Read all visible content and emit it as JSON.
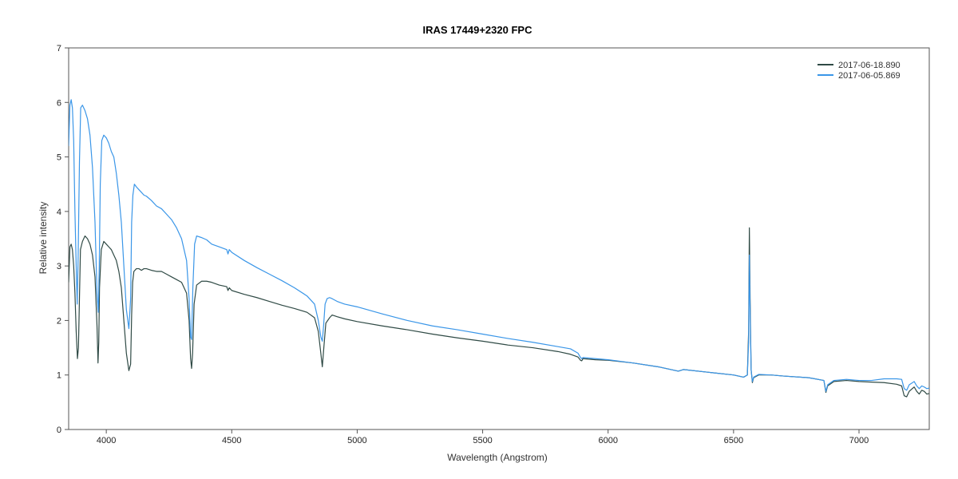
{
  "chart_data": {
    "type": "line",
    "title": "IRAS 17449+2320   FPC",
    "xlabel": "Wavelength (Angstrom)",
    "ylabel": "Relative intensity",
    "xlim": [
      3850,
      7280
    ],
    "ylim": [
      0,
      7
    ],
    "xticks": [
      4000,
      4500,
      5000,
      5500,
      6000,
      6500,
      7000
    ],
    "yticks": [
      0,
      1,
      2,
      3,
      4,
      5,
      6,
      7
    ],
    "grid": false,
    "legend_position": "top-right",
    "series": [
      {
        "name": "2017-06-18.890",
        "color": "#2f4a45",
        "x": [
          3850,
          3855,
          3860,
          3865,
          3870,
          3875,
          3880,
          3885,
          3889,
          3893,
          3897,
          3905,
          3915,
          3925,
          3935,
          3945,
          3955,
          3963,
          3967,
          3970,
          3973,
          3980,
          3990,
          4000,
          4010,
          4020,
          4030,
          4040,
          4050,
          4060,
          4070,
          4080,
          4090,
          4097,
          4101,
          4105,
          4110,
          4120,
          4130,
          4140,
          4150,
          4160,
          4180,
          4200,
          4220,
          4240,
          4260,
          4280,
          4300,
          4320,
          4330,
          4336,
          4340,
          4344,
          4350,
          4360,
          4380,
          4400,
          4420,
          4450,
          4480,
          4485,
          4490,
          4500,
          4550,
          4600,
          4650,
          4700,
          4750,
          4800,
          4830,
          4845,
          4855,
          4861,
          4867,
          4875,
          4890,
          4900,
          4920,
          4950,
          5000,
          5100,
          5200,
          5300,
          5400,
          5500,
          5600,
          5700,
          5800,
          5850,
          5880,
          5890,
          5895,
          5900,
          5950,
          6000,
          6100,
          6200,
          6280,
          6300,
          6400,
          6500,
          6540,
          6555,
          6560,
          6563,
          6566,
          6570,
          6575,
          6580,
          6600,
          6650,
          6700,
          6800,
          6860,
          6868,
          6875,
          6900,
          6950,
          7000,
          7050,
          7100,
          7150,
          7170,
          7180,
          7190,
          7200,
          7220,
          7230,
          7240,
          7250,
          7260,
          7270,
          7280
        ],
        "y": [
          2.7,
          3.35,
          3.4,
          3.3,
          3.0,
          2.5,
          1.8,
          1.3,
          1.5,
          2.4,
          3.3,
          3.45,
          3.55,
          3.5,
          3.4,
          3.2,
          2.8,
          1.9,
          1.22,
          1.6,
          2.6,
          3.3,
          3.45,
          3.4,
          3.35,
          3.3,
          3.2,
          3.1,
          2.9,
          2.6,
          2.0,
          1.4,
          1.08,
          1.2,
          2.1,
          2.7,
          2.9,
          2.95,
          2.95,
          2.92,
          2.95,
          2.95,
          2.92,
          2.9,
          2.9,
          2.85,
          2.8,
          2.75,
          2.7,
          2.5,
          2.0,
          1.3,
          1.12,
          1.4,
          2.3,
          2.65,
          2.72,
          2.72,
          2.7,
          2.65,
          2.62,
          2.55,
          2.6,
          2.55,
          2.48,
          2.42,
          2.35,
          2.28,
          2.22,
          2.15,
          2.05,
          1.8,
          1.4,
          1.15,
          1.5,
          1.95,
          2.05,
          2.1,
          2.07,
          2.03,
          1.98,
          1.9,
          1.83,
          1.75,
          1.68,
          1.62,
          1.55,
          1.5,
          1.43,
          1.38,
          1.33,
          1.27,
          1.26,
          1.3,
          1.28,
          1.27,
          1.22,
          1.15,
          1.07,
          1.1,
          1.05,
          1.0,
          0.96,
          1.0,
          1.8,
          3.7,
          2.4,
          1.1,
          0.86,
          0.95,
          1.0,
          1.0,
          0.98,
          0.95,
          0.9,
          0.68,
          0.8,
          0.88,
          0.9,
          0.88,
          0.87,
          0.86,
          0.83,
          0.8,
          0.62,
          0.6,
          0.7,
          0.78,
          0.7,
          0.65,
          0.72,
          0.7,
          0.65,
          0.66
        ]
      },
      {
        "name": "2017-06-05.869",
        "color": "#3a96e8",
        "x": [
          3850,
          3855,
          3860,
          3865,
          3870,
          3875,
          3880,
          3884,
          3888,
          3893,
          3898,
          3905,
          3915,
          3925,
          3935,
          3945,
          3955,
          3963,
          3968,
          3972,
          3976,
          3982,
          3990,
          4000,
          4010,
          4020,
          4030,
          4040,
          4050,
          4060,
          4070,
          4080,
          4090,
          4097,
          4101,
          4106,
          4112,
          4120,
          4130,
          4140,
          4150,
          4160,
          4180,
          4200,
          4220,
          4240,
          4260,
          4280,
          4300,
          4320,
          4330,
          4336,
          4340,
          4345,
          4352,
          4360,
          4380,
          4400,
          4420,
          4450,
          4480,
          4485,
          4490,
          4500,
          4550,
          4600,
          4650,
          4700,
          4750,
          4800,
          4830,
          4845,
          4855,
          4861,
          4866,
          4872,
          4880,
          4890,
          4900,
          4920,
          4950,
          5000,
          5100,
          5200,
          5300,
          5400,
          5500,
          5600,
          5700,
          5800,
          5850,
          5880,
          5890,
          5895,
          5900,
          5950,
          6000,
          6100,
          6200,
          6280,
          6300,
          6400,
          6500,
          6540,
          6555,
          6560,
          6563,
          6566,
          6570,
          6575,
          6580,
          6600,
          6650,
          6700,
          6800,
          6860,
          6868,
          6875,
          6900,
          6950,
          7000,
          7050,
          7100,
          7150,
          7170,
          7180,
          7190,
          7200,
          7220,
          7230,
          7240,
          7250,
          7260,
          7270,
          7280
        ],
        "y": [
          5.2,
          5.95,
          6.05,
          5.9,
          5.3,
          4.0,
          3.0,
          2.3,
          3.2,
          4.9,
          5.9,
          5.95,
          5.85,
          5.7,
          5.4,
          4.8,
          3.8,
          2.5,
          2.15,
          3.0,
          4.5,
          5.3,
          5.4,
          5.35,
          5.25,
          5.1,
          5.0,
          4.7,
          4.3,
          3.8,
          3.0,
          2.2,
          1.85,
          2.4,
          3.8,
          4.3,
          4.5,
          4.45,
          4.4,
          4.35,
          4.3,
          4.28,
          4.2,
          4.1,
          4.05,
          3.95,
          3.85,
          3.7,
          3.5,
          3.1,
          2.4,
          1.7,
          1.65,
          2.6,
          3.4,
          3.55,
          3.52,
          3.48,
          3.4,
          3.35,
          3.3,
          3.22,
          3.3,
          3.25,
          3.1,
          2.97,
          2.85,
          2.73,
          2.6,
          2.45,
          2.3,
          2.0,
          1.7,
          1.62,
          1.9,
          2.3,
          2.4,
          2.42,
          2.4,
          2.35,
          2.3,
          2.25,
          2.12,
          2.0,
          1.9,
          1.83,
          1.75,
          1.67,
          1.6,
          1.52,
          1.48,
          1.4,
          1.32,
          1.3,
          1.32,
          1.3,
          1.28,
          1.22,
          1.15,
          1.07,
          1.1,
          1.05,
          1.0,
          0.96,
          1.0,
          1.6,
          3.2,
          2.2,
          1.1,
          0.88,
          0.96,
          1.01,
          1.0,
          0.98,
          0.95,
          0.9,
          0.7,
          0.82,
          0.9,
          0.92,
          0.9,
          0.9,
          0.93,
          0.93,
          0.92,
          0.75,
          0.72,
          0.82,
          0.88,
          0.8,
          0.75,
          0.8,
          0.78,
          0.75,
          0.76
        ]
      }
    ]
  }
}
